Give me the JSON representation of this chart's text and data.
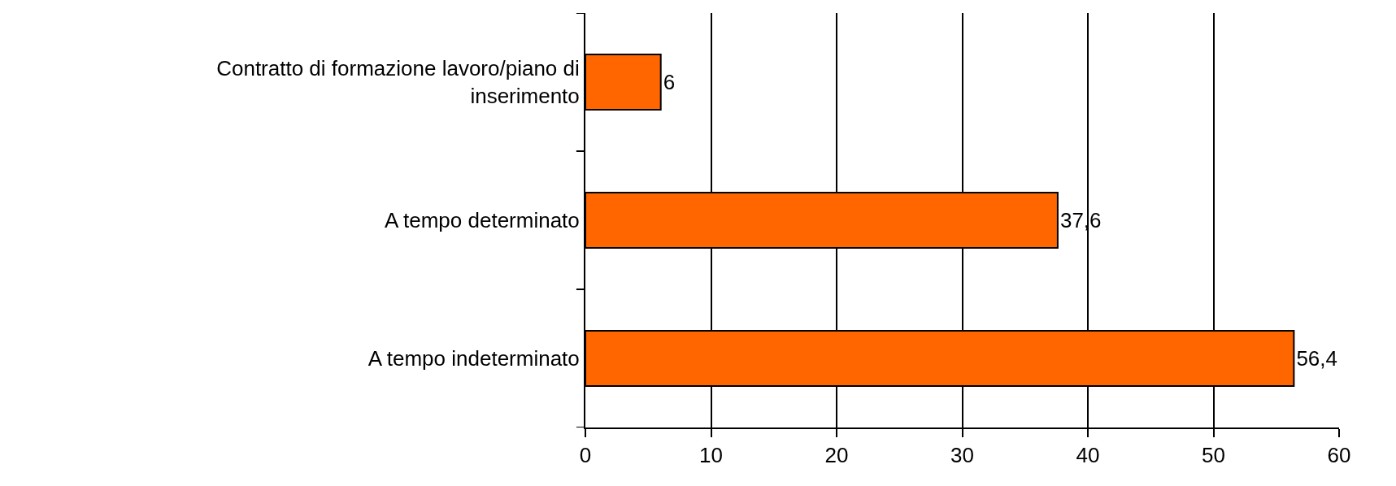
{
  "chart_data": {
    "type": "bar",
    "orientation": "horizontal",
    "categories": [
      "Contratto di formazione lavoro/piano di inserimento",
      "A tempo determinato",
      "A tempo indeterminato"
    ],
    "values": [
      6,
      37.6,
      56.4
    ],
    "value_labels": [
      "6",
      "37,6",
      "56,4"
    ],
    "color": "#ff6600",
    "xlim": [
      0,
      60
    ],
    "xticks": [
      0,
      10,
      20,
      30,
      40,
      50,
      60
    ],
    "grid": "x",
    "legend": false
  }
}
